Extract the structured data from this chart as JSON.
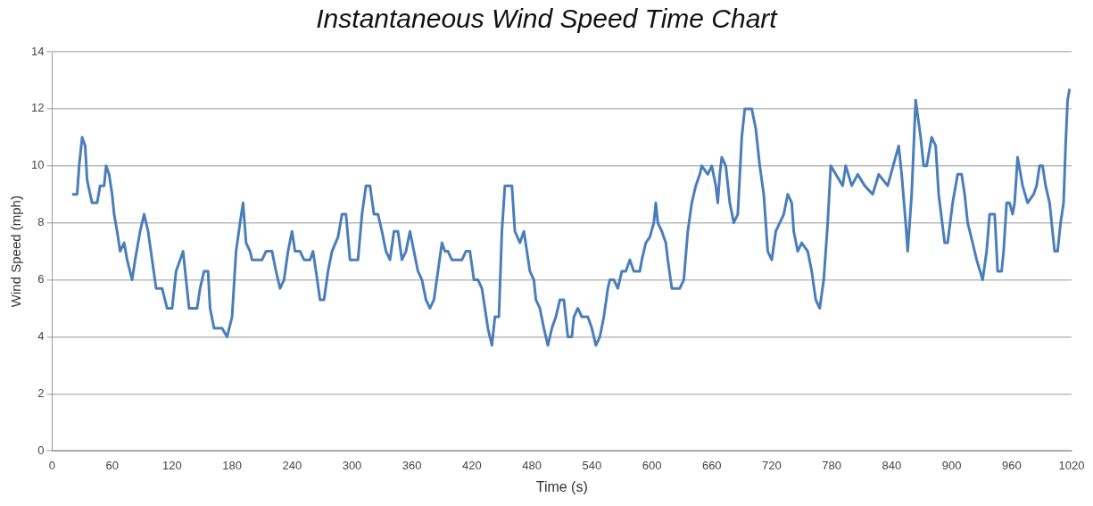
{
  "chart_data": {
    "type": "line",
    "title": "Instantaneous Wind Speed Time Chart",
    "xlabel": "Time (s)",
    "ylabel": "Wind Speed (mph)",
    "xlim": [
      0,
      1020
    ],
    "xticks": [
      0,
      60,
      120,
      180,
      240,
      300,
      360,
      420,
      480,
      540,
      600,
      660,
      720,
      780,
      840,
      900,
      960,
      1020
    ],
    "ylim": [
      0,
      14
    ],
    "yticks": [
      0,
      2,
      4,
      6,
      8,
      10,
      12,
      14
    ],
    "grid": "y",
    "legend": false,
    "marker": "none",
    "line_style": "solid",
    "series": [
      {
        "color": "#4a7ebb",
        "x": [
          20,
          25,
          27,
          30,
          33,
          35,
          38,
          40,
          45,
          48,
          52,
          54,
          57,
          60,
          62,
          65,
          68,
          72,
          75,
          80,
          83,
          88,
          92,
          96,
          100,
          104,
          110,
          115,
          120,
          124,
          128,
          131,
          134,
          137,
          145,
          148,
          152,
          156,
          158,
          162,
          170,
          175,
          180,
          184,
          188,
          191,
          194,
          198,
          200,
          210,
          214,
          220,
          224,
          228,
          232,
          236,
          240,
          243,
          248,
          252,
          258,
          261,
          264,
          268,
          272,
          276,
          280,
          286,
          290,
          294,
          298,
          306,
          310,
          314,
          318,
          322,
          326,
          330,
          334,
          338,
          342,
          346,
          350,
          354,
          358,
          362,
          366,
          370,
          374,
          378,
          382,
          386,
          390,
          393,
          396,
          400,
          410,
          414,
          418,
          422,
          426,
          430,
          433,
          436,
          440,
          443,
          447,
          450,
          453,
          460,
          463,
          468,
          472,
          475,
          478,
          482,
          484,
          488,
          492,
          496,
          500,
          504,
          508,
          512,
          516,
          520,
          522,
          526,
          530,
          536,
          540,
          544,
          548,
          552,
          556,
          558,
          562,
          566,
          570,
          574,
          578,
          582,
          588,
          590,
          594,
          598,
          602,
          604,
          606,
          610,
          614,
          616,
          620,
          628,
          632,
          636,
          640,
          644,
          648,
          650,
          656,
          660,
          664,
          666,
          668,
          670,
          674,
          678,
          682,
          686,
          690,
          693,
          700,
          704,
          708,
          712,
          716,
          720,
          724,
          728,
          732,
          736,
          740,
          742,
          746,
          750,
          756,
          760,
          764,
          768,
          772,
          776,
          779,
          791,
          794,
          800,
          806,
          813,
          821,
          827,
          836,
          847,
          850,
          854,
          856,
          860,
          864,
          869,
          872,
          875,
          880,
          884,
          887,
          893,
          896,
          901,
          906,
          910,
          913,
          916,
          921,
          925,
          931,
          935,
          938,
          943,
          944,
          946,
          950,
          952,
          955,
          958,
          961,
          963,
          966,
          971,
          976,
          982,
          985,
          988,
          991,
          994,
          998,
          1003,
          1006,
          1009,
          1012,
          1014,
          1016,
          1018
        ],
        "values": [
          9,
          9,
          10,
          11,
          10.7,
          9.5,
          9,
          8.7,
          8.7,
          9.3,
          9.3,
          10,
          9.7,
          9,
          8.3,
          7.7,
          7,
          7.3,
          6.7,
          6,
          6.7,
          7.7,
          8.3,
          7.7,
          6.7,
          5.7,
          5.7,
          5,
          5,
          6.3,
          6.7,
          7,
          6,
          5,
          5,
          5.7,
          6.3,
          6.3,
          5,
          4.3,
          4.3,
          4,
          4.7,
          7,
          8,
          8.7,
          7.3,
          7,
          6.7,
          6.7,
          7,
          7,
          6.3,
          5.7,
          6,
          7,
          7.7,
          7,
          7,
          6.7,
          6.7,
          7,
          6.3,
          5.3,
          5.3,
          6.3,
          7,
          7.5,
          8.3,
          8.3,
          6.7,
          6.7,
          8.3,
          9.3,
          9.3,
          8.3,
          8.3,
          7.7,
          7,
          6.7,
          7.7,
          7.7,
          6.7,
          7,
          7.7,
          7,
          6.3,
          6,
          5.3,
          5,
          5.3,
          6.3,
          7.3,
          7,
          7,
          6.7,
          6.7,
          7,
          7,
          6,
          6,
          5.7,
          5,
          4.3,
          3.7,
          4.7,
          4.7,
          7.7,
          9.3,
          9.3,
          7.7,
          7.3,
          7.7,
          7,
          6.3,
          6,
          5.3,
          5,
          4.3,
          3.7,
          4.3,
          4.7,
          5.3,
          5.3,
          4,
          4,
          4.7,
          5,
          4.7,
          4.7,
          4.3,
          3.7,
          4,
          4.7,
          5.7,
          6,
          6,
          5.7,
          6.3,
          6.3,
          6.7,
          6.3,
          6.3,
          6.7,
          7.3,
          7.5,
          8,
          8.7,
          8,
          7.7,
          7.3,
          6.7,
          5.7,
          5.7,
          6,
          7.7,
          8.7,
          9.3,
          9.7,
          10,
          9.7,
          10,
          9.3,
          8.7,
          9.7,
          10.3,
          10,
          8.7,
          8,
          8.3,
          11,
          12,
          12,
          11.3,
          10,
          9,
          7,
          6.7,
          7.7,
          8,
          8.3,
          9,
          8.7,
          7.7,
          7,
          7.3,
          7,
          6.3,
          5.3,
          5,
          6,
          8,
          10,
          9.3,
          10,
          9.3,
          9.7,
          9.3,
          9,
          9.7,
          9.3,
          10.7,
          9.7,
          8,
          7,
          9,
          12.3,
          11,
          10,
          10,
          11,
          10.7,
          9,
          7.3,
          7.3,
          8.7,
          9.7,
          9.7,
          9,
          8,
          7.3,
          6.7,
          6,
          7,
          8.3,
          8.3,
          7.7,
          6.3,
          6.3,
          7,
          8.7,
          8.7,
          8.3,
          8.7,
          10.3,
          9.3,
          8.7,
          9,
          9.3,
          10,
          10,
          9.3,
          8.7,
          7,
          7,
          8,
          8.7,
          10.7,
          12.3,
          12.7
        ]
      }
    ]
  }
}
